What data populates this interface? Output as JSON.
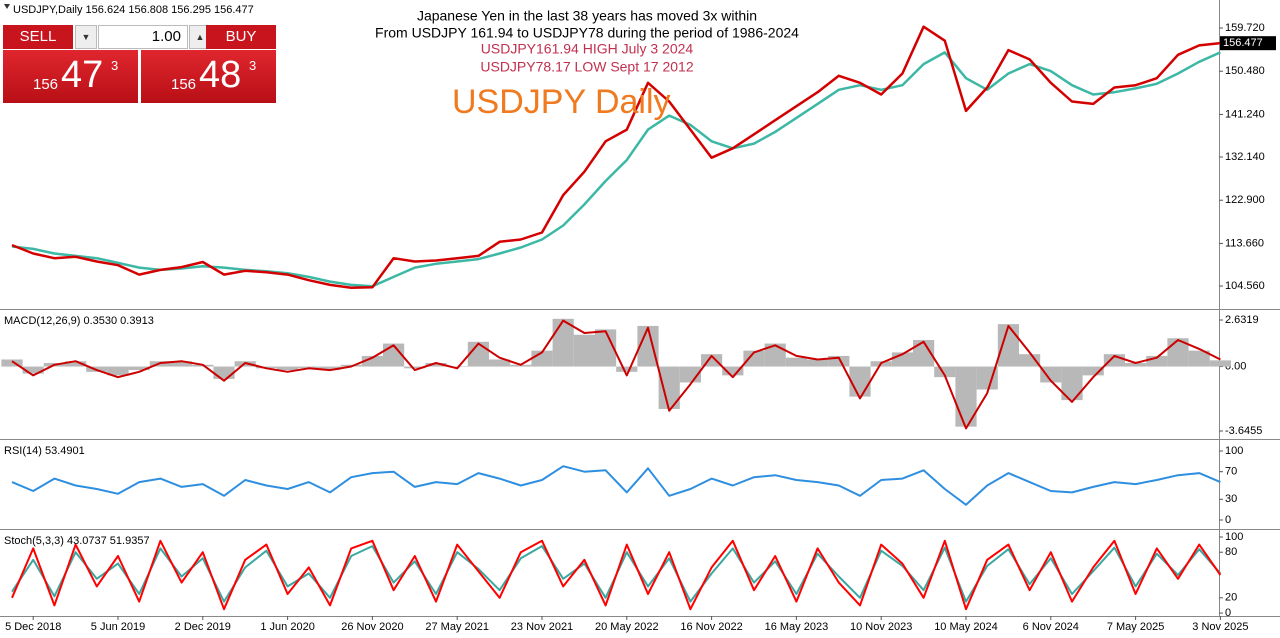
{
  "chart_data": [
    {
      "type": "line",
      "title": "USDJPY,Daily  156.624 156.808 156.295 156.477",
      "annotations": [
        {
          "text": "Japanese Yen in the last 38 years has moved 3x within",
          "color": "#000000"
        },
        {
          "text": "From USDJPY 161.94 to USDJPY78 during the period of 1986-2024",
          "color": "#000000"
        },
        {
          "text": "USDJPY161.94 HIGH July 3 2024",
          "color": "#c2304e"
        },
        {
          "text": "USDJPY78.17 LOW Sept 17 2012",
          "color": "#c2304e"
        },
        {
          "text": "USDJPY Daily",
          "color": "#f07a20"
        }
      ],
      "categories": [
        null,
        "5 Dec 2018",
        null,
        null,
        null,
        "5 Jun 2019",
        null,
        null,
        null,
        "2 Dec 2019",
        null,
        null,
        null,
        "1 Jun 2020",
        null,
        null,
        null,
        "26 Nov 2020",
        null,
        null,
        null,
        "27 May 2021",
        null,
        null,
        null,
        "23 Nov 2021",
        null,
        null,
        null,
        "20 May 2022",
        null,
        null,
        null,
        "16 Nov 2022",
        null,
        null,
        null,
        "16 May 2023",
        null,
        null,
        null,
        "10 Nov 2023",
        null,
        null,
        null,
        "10 May 2024",
        null,
        null,
        null,
        "6 Nov 2024",
        null,
        null,
        null,
        "7 May 2025",
        null,
        null,
        null,
        "3 Nov 2025"
      ],
      "series": [
        {
          "color": "#3cb8a5",
          "values": [
            113,
            112.5,
            111.5,
            111,
            110.5,
            109.5,
            108.5,
            108,
            108.3,
            108.8,
            108.5,
            108,
            107.7,
            107.3,
            106.5,
            105.5,
            104.8,
            104.5,
            106.5,
            108.5,
            109.3,
            109.8,
            110.3,
            111.5,
            112.8,
            114.5,
            117.5,
            122,
            127,
            131.5,
            138,
            141,
            139,
            135.5,
            134,
            135,
            137.5,
            140.5,
            143.5,
            146.5,
            147.5,
            146.5,
            147.5,
            152,
            154.5,
            149,
            146.5,
            150,
            152,
            150.5,
            147.5,
            145.5,
            146,
            146.8,
            147.8,
            150,
            152.5,
            154.5
          ]
        },
        {
          "color": "#d40000",
          "values": [
            113.3,
            111.5,
            110.5,
            110.8,
            109.8,
            109,
            107,
            108,
            108.6,
            109.7,
            107,
            107.8,
            107.5,
            107,
            105.8,
            104.8,
            104.2,
            104.3,
            110.5,
            109.8,
            110,
            110.5,
            111,
            114,
            114.5,
            116,
            124,
            129,
            135.5,
            138,
            148,
            144,
            138,
            132,
            134,
            137,
            140,
            143,
            146,
            149.5,
            148,
            145.5,
            150,
            160,
            157,
            142,
            147,
            155,
            153,
            148,
            144,
            143.5,
            147,
            147.5,
            149,
            154,
            156,
            156.5
          ]
        }
      ],
      "last_price": 156.477,
      "ylim": [
        99.64,
        165.71
      ],
      "yticks": [
        {
          "value": 104.56,
          "label": "104.560"
        },
        {
          "value": 113.66,
          "label": "113.660"
        },
        {
          "value": 122.9,
          "label": "122.900"
        },
        {
          "value": 132.14,
          "label": "132.140"
        },
        {
          "value": 141.24,
          "label": "141.240"
        },
        {
          "value": 150.48,
          "label": "150.480"
        },
        {
          "value": 159.72,
          "label": "159.720"
        }
      ]
    },
    {
      "type": "macd",
      "title": "MACD(12,26,9) 0.3530 0.3913",
      "series": [
        {
          "color": "#b8b8b8",
          "style": "bar",
          "values": [
            0.4,
            -0.4,
            0.2,
            0.3,
            -0.3,
            -0.5,
            -0.2,
            0.3,
            0.3,
            0.1,
            -0.7,
            0.3,
            -0.1,
            -0.2,
            -0.1,
            -0.2,
            0.1,
            0.6,
            1.3,
            -0.1,
            0.2,
            0,
            1.4,
            0.4,
            0.1,
            0.9,
            2.7,
            1.8,
            2.1,
            -0.3,
            2.3,
            -2.4,
            -0.9,
            0.7,
            -0.5,
            0.9,
            1.3,
            0.5,
            0.4,
            0.6,
            -1.7,
            0.3,
            0.8,
            1.5,
            -0.6,
            -3.4,
            -1.3,
            2.4,
            0.7,
            -0.9,
            -1.9,
            -0.5,
            0.7,
            0.2,
            0.6,
            1.6,
            0.9,
            0.35
          ]
        },
        {
          "color": "#cc0000",
          "style": "line",
          "values": [
            0.3,
            -0.5,
            0.1,
            0.3,
            -0.2,
            -0.6,
            -0.3,
            0.2,
            0.3,
            0.1,
            -0.8,
            0.2,
            -0.1,
            -0.3,
            -0.1,
            -0.2,
            0,
            0.5,
            1.2,
            -0.2,
            0.2,
            -0.1,
            1.3,
            0.5,
            0.1,
            0.8,
            2.6,
            1.9,
            2,
            -0.5,
            2.2,
            -2.5,
            -1,
            0.6,
            -0.6,
            0.8,
            1.2,
            0.6,
            0.4,
            0.5,
            -1.8,
            0.2,
            0.7,
            1.4,
            -0.5,
            -3.5,
            -1.5,
            2.3,
            0.8,
            -0.8,
            -2,
            -0.6,
            0.6,
            0.2,
            0.5,
            1.5,
            1,
            0.4
          ]
        }
      ],
      "ylim": [
        -4.042,
        3.142
      ],
      "yticks": [
        2.6319,
        {
          "value": 0,
          "label": "0.00"
        },
        -3.6455
      ]
    },
    {
      "type": "line",
      "title": "RSI(14) 53.4901",
      "series": [
        {
          "color": "#2e8fe0",
          "values": [
            55,
            42,
            60,
            50,
            45,
            38,
            55,
            60,
            48,
            52,
            35,
            58,
            50,
            45,
            55,
            40,
            62,
            68,
            70,
            48,
            55,
            52,
            68,
            60,
            50,
            58,
            78,
            70,
            72,
            40,
            75,
            35,
            45,
            60,
            50,
            62,
            65,
            58,
            55,
            50,
            35,
            58,
            60,
            72,
            45,
            22,
            50,
            68,
            55,
            42,
            40,
            48,
            55,
            52,
            58,
            65,
            68,
            55
          ]
        }
      ],
      "ylim": [
        -11.6,
        114.5
      ],
      "yticks": [
        100,
        70,
        30,
        0
      ]
    },
    {
      "type": "line",
      "title": "Stoch(5,3,3) 43.0737 51.9357",
      "series": [
        {
          "color": "#3aa8a0",
          "values": [
            28,
            70,
            22,
            80,
            45,
            65,
            25,
            85,
            48,
            72,
            15,
            60,
            82,
            35,
            52,
            20,
            75,
            88,
            40,
            68,
            25,
            80,
            58,
            30,
            72,
            88,
            45,
            65,
            20,
            80,
            35,
            72,
            15,
            52,
            85,
            40,
            68,
            25,
            78,
            48,
            20,
            82,
            62,
            30,
            86,
            15,
            62,
            84,
            38,
            72,
            25,
            55,
            86,
            35,
            78,
            50,
            84,
            52
          ]
        },
        {
          "color": "#ff0000",
          "values": [
            20,
            85,
            10,
            90,
            35,
            75,
            15,
            95,
            40,
            80,
            5,
            70,
            90,
            25,
            60,
            10,
            85,
            95,
            30,
            75,
            15,
            90,
            55,
            20,
            80,
            95,
            35,
            70,
            10,
            90,
            25,
            80,
            5,
            60,
            95,
            30,
            75,
            15,
            85,
            40,
            10,
            90,
            65,
            20,
            95,
            5,
            70,
            90,
            30,
            80,
            15,
            60,
            95,
            25,
            85,
            45,
            90,
            50
          ]
        }
      ],
      "ylim": [
        -3.9,
        107.9
      ],
      "yticks": [
        100,
        80,
        20,
        0
      ]
    }
  ],
  "trade_panel": {
    "sell": "SELL",
    "buy": "BUY",
    "lot": "1.00",
    "bid": {
      "prefix": "156",
      "big": "47",
      "sup": "3"
    },
    "ask": {
      "prefix": "156",
      "big": "48",
      "sup": "3"
    }
  }
}
